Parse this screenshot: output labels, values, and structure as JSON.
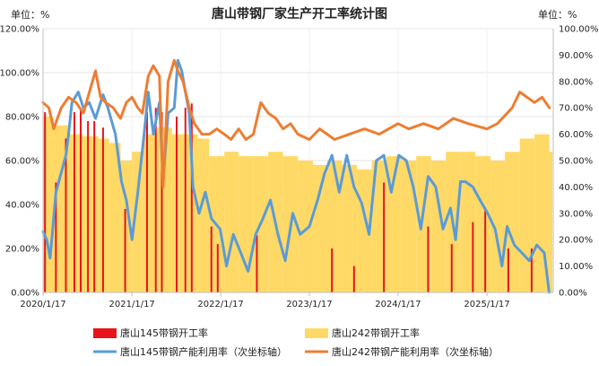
{
  "chart_data": {
    "type": "bar+line",
    "title": "唐山带钢厂家生产开工率统计图",
    "left_unit": "单位：%",
    "right_unit": "单位：%",
    "x_ticks": [
      "2020/1/17",
      "2021/1/17",
      "2022/1/17",
      "2023/1/17",
      "2024/1/17",
      "2025/1/17"
    ],
    "x_range": [
      "2020/1/17",
      "2025/10/17"
    ],
    "y_left": {
      "range": [
        0,
        120
      ],
      "ticks": [
        "0.00%",
        "20.00%",
        "40.00%",
        "60.00%",
        "80.00%",
        "100.00%",
        "120.00%"
      ]
    },
    "y_right": {
      "range": [
        0,
        100
      ],
      "ticks": [
        "0.00%",
        "10.00%",
        "20.00%",
        "30.00%",
        "40.00%",
        "50.00%",
        "60.00%",
        "70.00%",
        "80.00%",
        "90.00%",
        "100.00%"
      ]
    },
    "legend_position": "bottom",
    "colors": {
      "red": "#e8141c",
      "yellow": "#ffd966",
      "blue": "#5b9bd5",
      "orange": "#ed7d31",
      "axis": "#bfbfbf"
    },
    "series": [
      {
        "name": "唐山145带钢开工率",
        "kind": "bar",
        "axis": "left",
        "color": "#e8141c",
        "points": [
          [
            "2020/1/25",
            82
          ],
          [
            "2020/3/10",
            50
          ],
          [
            "2020/4/20",
            70
          ],
          [
            "2020/5/25",
            82
          ],
          [
            "2020/6/20",
            84
          ],
          [
            "2020/7/20",
            78
          ],
          [
            "2020/8/15",
            78
          ],
          [
            "2020/9/20",
            75
          ],
          [
            "2020/12/20",
            38
          ],
          [
            "2021/1/17",
            0
          ],
          [
            "2021/3/20",
            82
          ],
          [
            "2021/4/25",
            84
          ],
          [
            "2021/5/20",
            82
          ],
          [
            "2021/7/20",
            80
          ],
          [
            "2021/8/25",
            84
          ],
          [
            "2021/9/20",
            86
          ],
          [
            "2021/12/10",
            30
          ],
          [
            "2022/1/5",
            22
          ],
          [
            "2022/6/15",
            26
          ],
          [
            "2023/4/20",
            20
          ],
          [
            "2023/7/20",
            12
          ],
          [
            "2023/11/20",
            50
          ],
          [
            "2024/5/20",
            30
          ],
          [
            "2024/8/25",
            22
          ],
          [
            "2024/11/20",
            32
          ],
          [
            "2025/1/10",
            38
          ],
          [
            "2025/4/15",
            20
          ],
          [
            "2025/7/20",
            20
          ]
        ]
      },
      {
        "name": "唐山242带钢开工率",
        "kind": "bar",
        "axis": "left",
        "color": "#ffd966",
        "points": [
          [
            "2020/1/17",
            80
          ],
          [
            "2020/3/1",
            76
          ],
          [
            "2020/5/1",
            72
          ],
          [
            "2020/7/1",
            71
          ],
          [
            "2020/9/1",
            70
          ],
          [
            "2020/10/15",
            68
          ],
          [
            "2020/12/1",
            60
          ],
          [
            "2021/1/17",
            64
          ],
          [
            "2021/3/1",
            72
          ],
          [
            "2021/5/1",
            75
          ],
          [
            "2021/7/1",
            72
          ],
          [
            "2021/9/1",
            72
          ],
          [
            "2021/10/15",
            70
          ],
          [
            "2021/12/1",
            62
          ],
          [
            "2022/2/1",
            64
          ],
          [
            "2022/4/1",
            62
          ],
          [
            "2022/6/1",
            62
          ],
          [
            "2022/8/1",
            64
          ],
          [
            "2022/10/1",
            62
          ],
          [
            "2022/12/1",
            60
          ],
          [
            "2023/2/1",
            58
          ],
          [
            "2023/4/1",
            60
          ],
          [
            "2023/6/1",
            58
          ],
          [
            "2023/8/1",
            56
          ],
          [
            "2023/10/1",
            60
          ],
          [
            "2023/12/1",
            62
          ],
          [
            "2024/2/1",
            60
          ],
          [
            "2024/4/1",
            62
          ],
          [
            "2024/6/1",
            60
          ],
          [
            "2024/8/1",
            64
          ],
          [
            "2024/10/1",
            64
          ],
          [
            "2024/12/1",
            62
          ],
          [
            "2025/2/1",
            60
          ],
          [
            "2025/4/1",
            64
          ],
          [
            "2025/6/1",
            70
          ],
          [
            "2025/8/1",
            72
          ],
          [
            "2025/10/1",
            64
          ]
        ]
      },
      {
        "name": "唐山145带钢产能利用率（次坐标轴）",
        "kind": "line",
        "axis": "right",
        "color": "#5b9bd5",
        "points": [
          [
            "2020/1/17",
            23
          ],
          [
            "2020/2/1",
            20
          ],
          [
            "2020/2/15",
            13
          ],
          [
            "2020/3/10",
            38
          ],
          [
            "2020/4/20",
            52
          ],
          [
            "2020/5/1",
            60
          ],
          [
            "2020/5/15",
            72
          ],
          [
            "2020/6/10",
            76
          ],
          [
            "2020/7/1",
            70
          ],
          [
            "2020/7/25",
            72
          ],
          [
            "2020/8/20",
            66
          ],
          [
            "2020/9/20",
            75
          ],
          [
            "2020/10/10",
            70
          ],
          [
            "2020/11/10",
            60
          ],
          [
            "2020/12/5",
            42
          ],
          [
            "2020/12/25",
            35
          ],
          [
            "2021/1/17",
            20
          ],
          [
            "2021/2/10",
            38
          ],
          [
            "2021/3/10",
            62
          ],
          [
            "2021/3/25",
            76
          ],
          [
            "2021/4/15",
            60
          ],
          [
            "2021/5/10",
            72
          ],
          [
            "2021/5/25",
            42
          ],
          [
            "2021/6/15",
            68
          ],
          [
            "2021/7/10",
            70
          ],
          [
            "2021/7/25",
            88
          ],
          [
            "2021/8/10",
            84
          ],
          [
            "2021/8/25",
            76
          ],
          [
            "2021/9/10",
            68
          ],
          [
            "2021/9/25",
            40
          ],
          [
            "2021/10/20",
            30
          ],
          [
            "2021/11/15",
            38
          ],
          [
            "2021/12/10",
            28
          ],
          [
            "2022/1/15",
            24
          ],
          [
            "2022/2/10",
            10
          ],
          [
            "2022/3/10",
            22
          ],
          [
            "2022/4/10",
            15
          ],
          [
            "2022/5/10",
            8
          ],
          [
            "2022/6/10",
            22
          ],
          [
            "2022/7/10",
            28
          ],
          [
            "2022/8/10",
            35
          ],
          [
            "2022/9/10",
            22
          ],
          [
            "2022/10/10",
            12
          ],
          [
            "2022/11/10",
            30
          ],
          [
            "2022/12/10",
            22
          ],
          [
            "2023/1/17",
            25
          ],
          [
            "2023/2/20",
            35
          ],
          [
            "2023/3/20",
            45
          ],
          [
            "2023/4/20",
            52
          ],
          [
            "2023/5/20",
            38
          ],
          [
            "2023/6/20",
            52
          ],
          [
            "2023/7/20",
            40
          ],
          [
            "2023/8/20",
            34
          ],
          [
            "2023/9/20",
            22
          ],
          [
            "2023/10/20",
            50
          ],
          [
            "2023/11/20",
            52
          ],
          [
            "2023/12/20",
            38
          ],
          [
            "2024/1/20",
            52
          ],
          [
            "2024/2/20",
            50
          ],
          [
            "2024/3/20",
            40
          ],
          [
            "2024/4/20",
            24
          ],
          [
            "2024/5/20",
            44
          ],
          [
            "2024/6/20",
            40
          ],
          [
            "2024/7/20",
            24
          ],
          [
            "2024/8/20",
            32
          ],
          [
            "2024/9/10",
            20
          ],
          [
            "2024/9/30",
            42
          ],
          [
            "2024/10/20",
            42
          ],
          [
            "2024/11/20",
            40
          ],
          [
            "2024/12/20",
            35
          ],
          [
            "2025/1/20",
            30
          ],
          [
            "2025/2/20",
            24
          ],
          [
            "2025/3/20",
            10
          ],
          [
            "2025/4/10",
            25
          ],
          [
            "2025/5/10",
            18
          ],
          [
            "2025/6/10",
            15
          ],
          [
            "2025/7/10",
            12
          ],
          [
            "2025/8/10",
            18
          ],
          [
            "2025/9/10",
            15
          ],
          [
            "2025/9/30",
            0
          ]
        ]
      },
      {
        "name": "唐山242带钢产能利用率（次坐标轴）",
        "kind": "line",
        "axis": "right",
        "color": "#ed7d31",
        "points": [
          [
            "2020/1/17",
            72
          ],
          [
            "2020/2/10",
            70
          ],
          [
            "2020/3/1",
            62
          ],
          [
            "2020/4/1",
            70
          ],
          [
            "2020/5/1",
            74
          ],
          [
            "2020/6/1",
            72
          ],
          [
            "2020/7/1",
            68
          ],
          [
            "2020/8/1",
            78
          ],
          [
            "2020/8/20",
            84
          ],
          [
            "2020/9/10",
            74
          ],
          [
            "2020/10/1",
            72
          ],
          [
            "2020/11/1",
            70
          ],
          [
            "2020/12/1",
            66
          ],
          [
            "2020/12/25",
            72
          ],
          [
            "2021/1/17",
            74
          ],
          [
            "2021/2/10",
            70
          ],
          [
            "2021/3/1",
            68
          ],
          [
            "2021/3/25",
            82
          ],
          [
            "2021/4/15",
            86
          ],
          [
            "2021/5/10",
            82
          ],
          [
            "2021/5/25",
            40
          ],
          [
            "2021/6/15",
            80
          ],
          [
            "2021/7/10",
            88
          ],
          [
            "2021/7/25",
            84
          ],
          [
            "2021/8/15",
            80
          ],
          [
            "2021/9/10",
            70
          ],
          [
            "2021/10/1",
            64
          ],
          [
            "2021/11/1",
            60
          ],
          [
            "2021/12/1",
            60
          ],
          [
            "2022/1/1",
            62
          ],
          [
            "2022/2/1",
            60
          ],
          [
            "2022/3/1",
            58
          ],
          [
            "2022/4/1",
            62
          ],
          [
            "2022/5/1",
            58
          ],
          [
            "2022/6/1",
            60
          ],
          [
            "2022/7/1",
            72
          ],
          [
            "2022/8/1",
            68
          ],
          [
            "2022/9/1",
            66
          ],
          [
            "2022/10/1",
            62
          ],
          [
            "2022/11/1",
            64
          ],
          [
            "2022/12/1",
            60
          ],
          [
            "2023/1/17",
            58
          ],
          [
            "2023/3/1",
            62
          ],
          [
            "2023/5/1",
            58
          ],
          [
            "2023/7/1",
            60
          ],
          [
            "2023/9/1",
            62
          ],
          [
            "2023/11/1",
            60
          ],
          [
            "2024/1/17",
            64
          ],
          [
            "2024/3/1",
            62
          ],
          [
            "2024/5/1",
            64
          ],
          [
            "2024/7/1",
            62
          ],
          [
            "2024/9/1",
            66
          ],
          [
            "2024/11/1",
            64
          ],
          [
            "2025/1/17",
            62
          ],
          [
            "2025/3/1",
            64
          ],
          [
            "2025/5/1",
            70
          ],
          [
            "2025/6/1",
            76
          ],
          [
            "2025/7/1",
            74
          ],
          [
            "2025/8/1",
            72
          ],
          [
            "2025/9/1",
            74
          ],
          [
            "2025/10/1",
            70
          ]
        ]
      }
    ]
  }
}
